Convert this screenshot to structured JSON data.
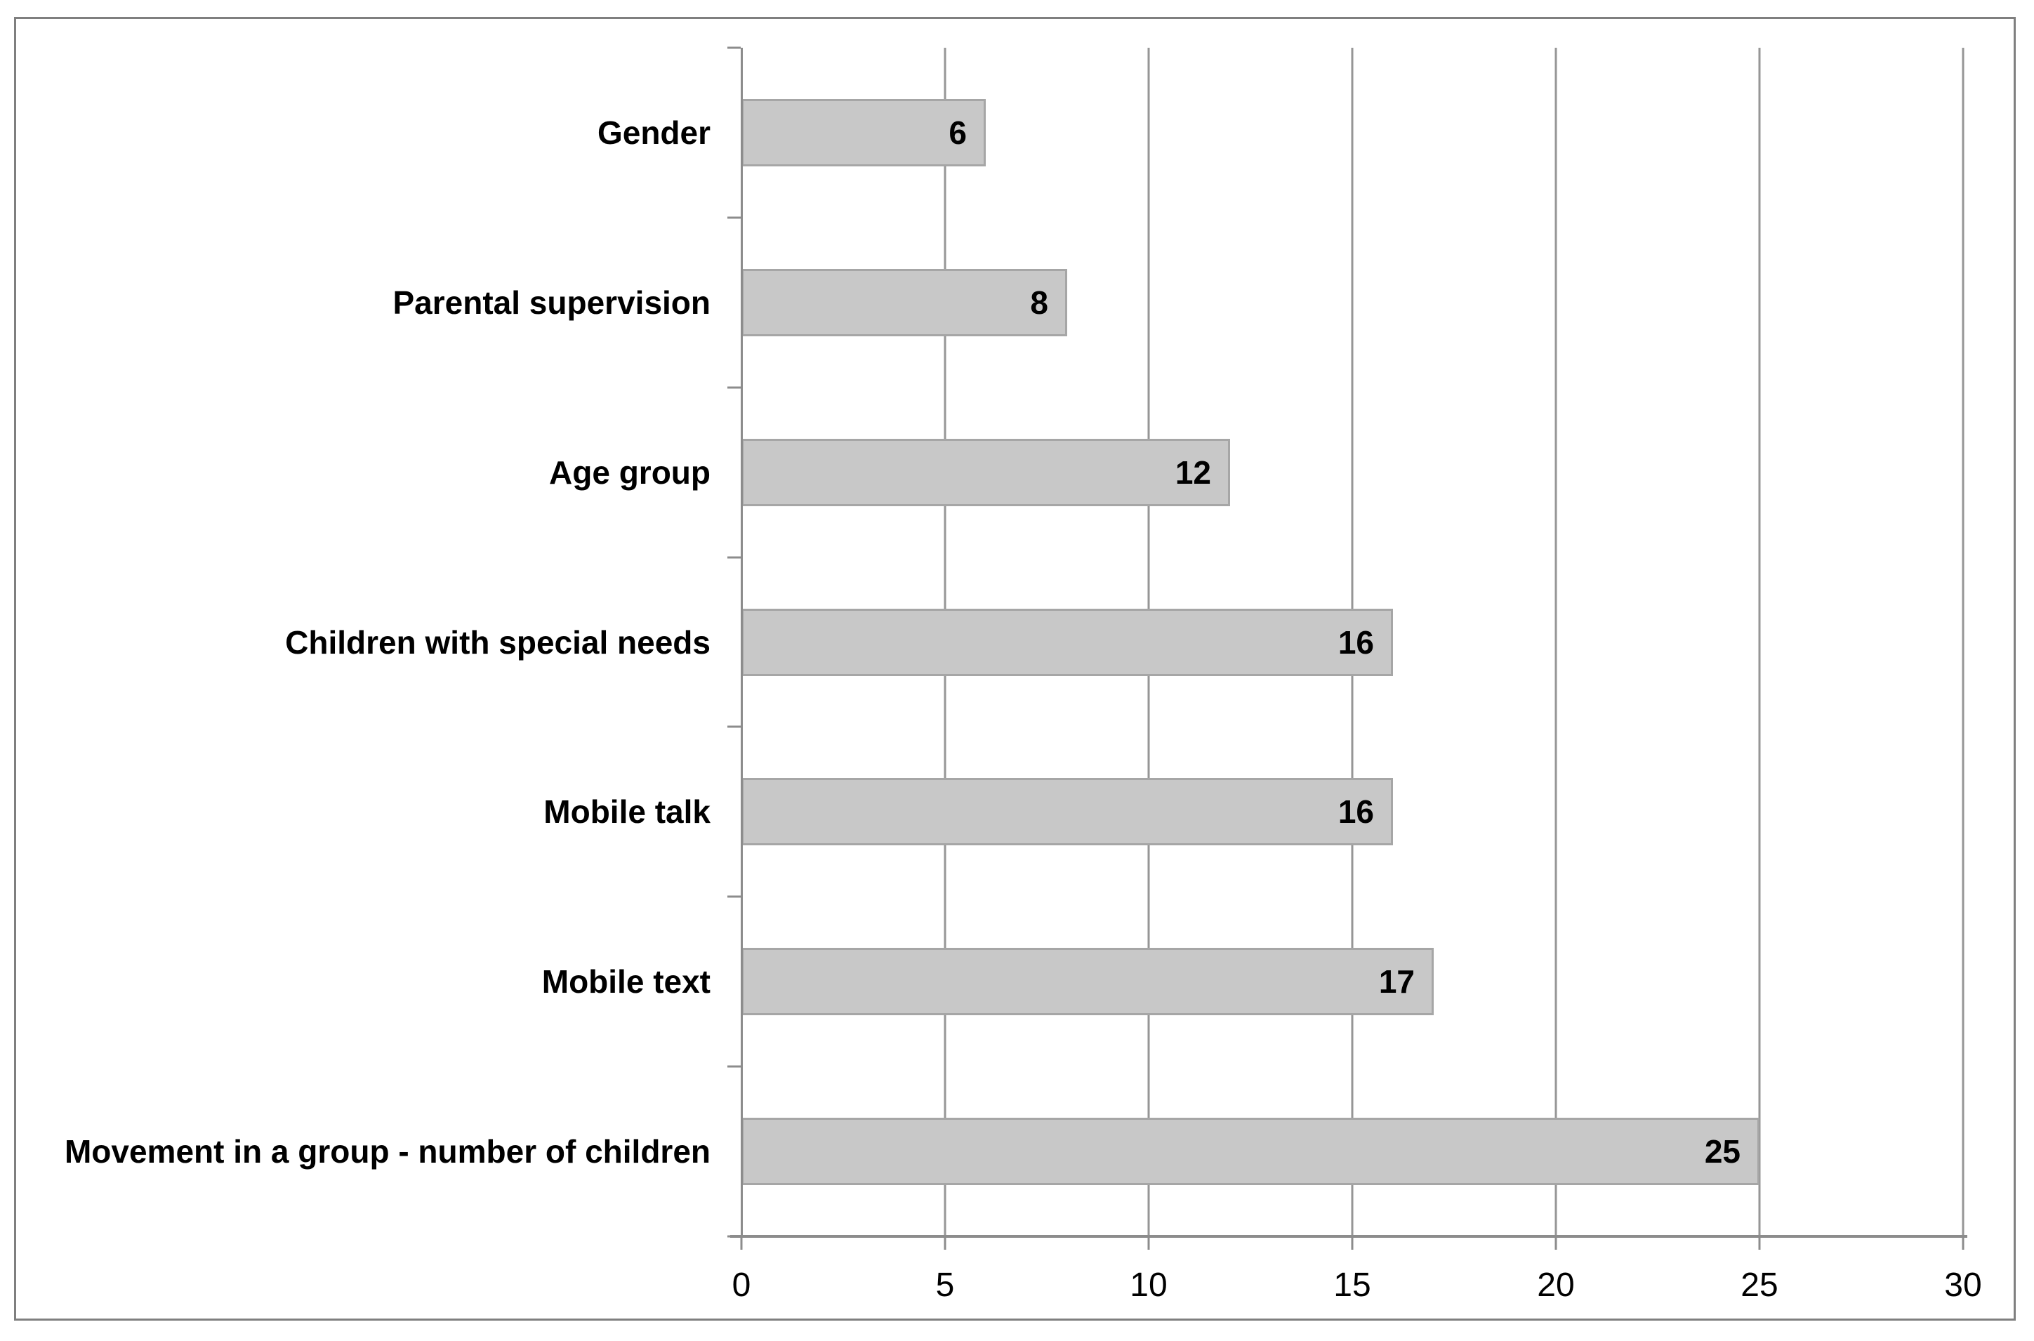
{
  "chart_data": {
    "type": "bar",
    "orientation": "horizontal",
    "title": "",
    "xlabel": "",
    "ylabel": "",
    "categories": [
      "Gender",
      "Parental supervision",
      "Age group",
      "Children with special needs",
      "Mobile talk",
      "Mobile text",
      "Movement in a group - number of children"
    ],
    "values": [
      6,
      8,
      12,
      16,
      16,
      17,
      25
    ],
    "data_labels": [
      "6",
      "8",
      "12",
      "16",
      "16",
      "17",
      "25"
    ],
    "data_label_position": "inside-end",
    "xlim": [
      0,
      30
    ],
    "x_ticks": [
      0,
      5,
      10,
      15,
      20,
      25,
      30
    ],
    "x_tick_labels": [
      "0",
      "5",
      "10",
      "15",
      "20",
      "25",
      "30"
    ],
    "grid": "vertical-at-ticks",
    "legend": "none",
    "colors": {
      "bar_fill": "#c8c8c8",
      "bar_border": "#a6a6a6",
      "gridline": "#969696",
      "axis_line": "#8c8c8c",
      "data_label": "#000000",
      "tick_label": "#000000",
      "category_label": "#000000",
      "frame_border": "#7f7f7f",
      "background": "#ffffff"
    }
  }
}
